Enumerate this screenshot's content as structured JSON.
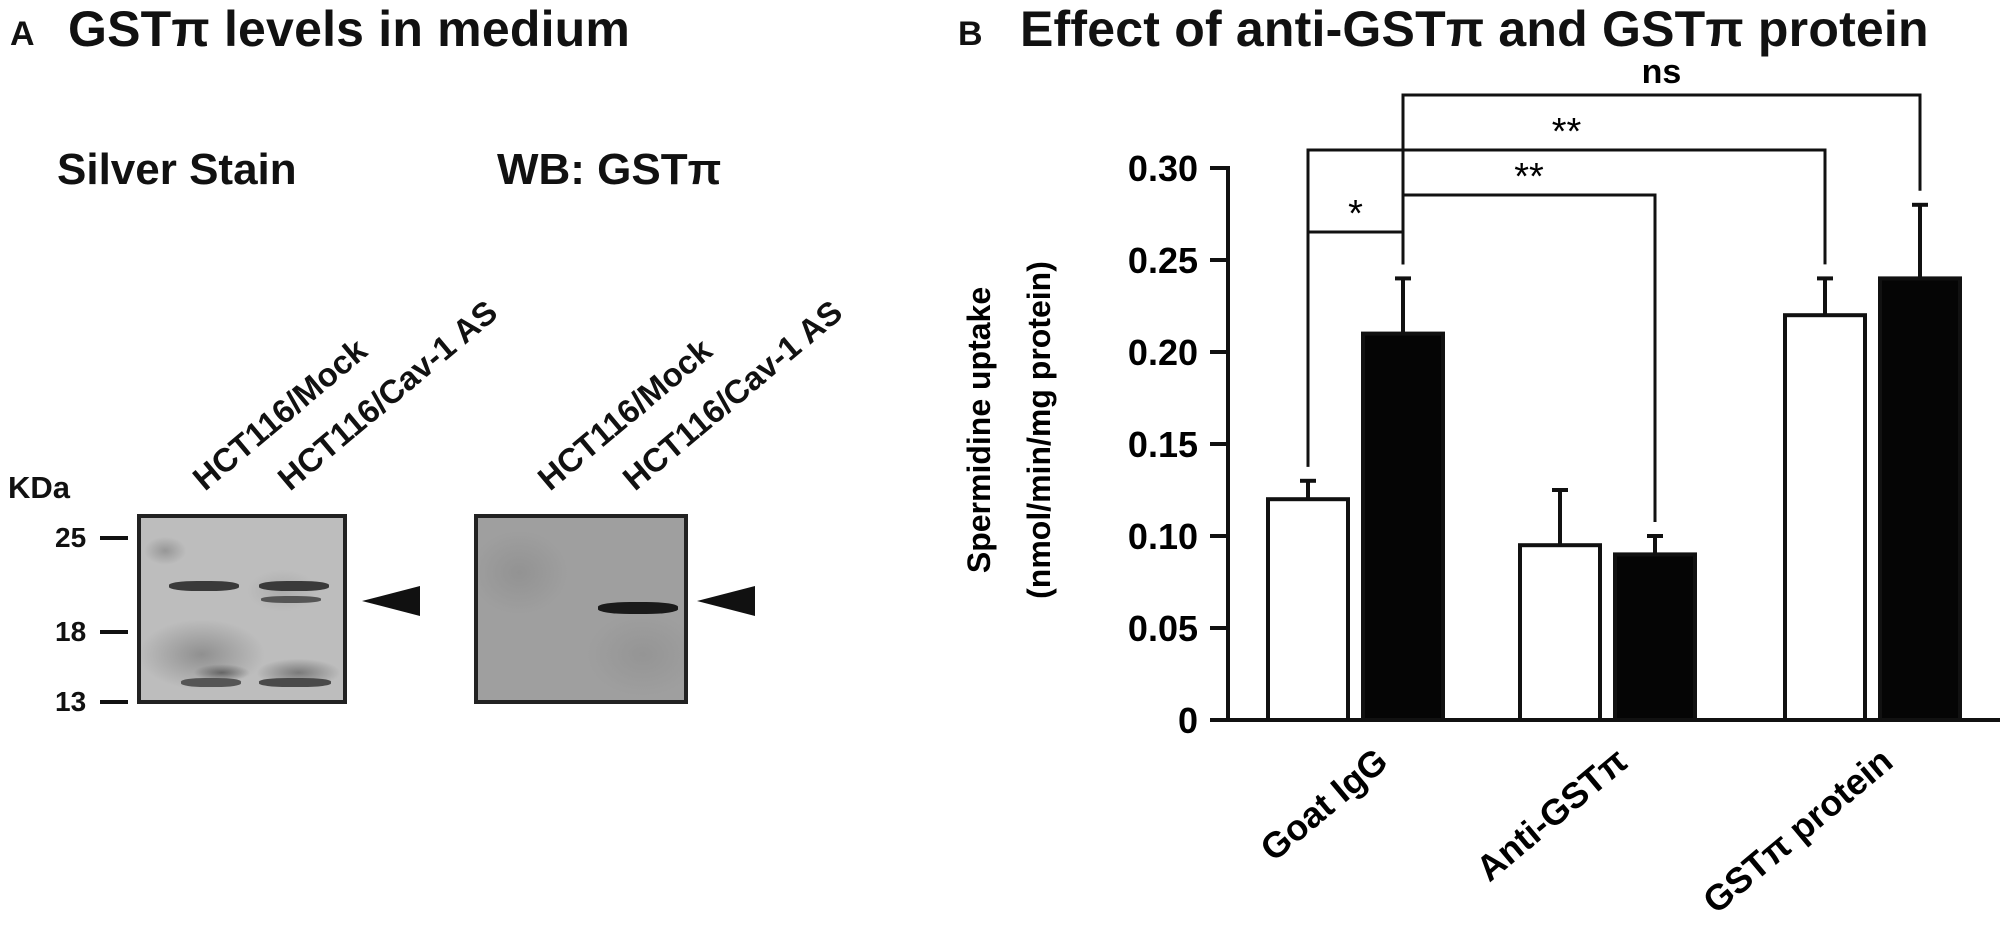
{
  "panel_a": {
    "letter": "A",
    "title": "GSTπ levels in medium",
    "silver": {
      "title": "Silver Stain",
      "lanes": [
        "HCT116/Mock",
        "HCT116/Cav-1 AS"
      ]
    },
    "wb": {
      "title": "WB: GSTπ",
      "lanes": [
        "HCT116/Mock",
        "HCT116/Cav-1 AS"
      ]
    },
    "kda_label": "KDa",
    "markers": [
      "25",
      "18",
      "13"
    ]
  },
  "panel_b": {
    "letter": "B",
    "title": "Effect of anti-GSTπ and GSTπ protein"
  },
  "chart_data": {
    "type": "bar",
    "title": "Effect of anti-GSTπ and GSTπ protein",
    "xlabel": "",
    "ylabel": [
      "Spermidine uptake",
      "(nmol/min/mg protein)"
    ],
    "categories": [
      "Goat IgG",
      "Anti-GSTπ",
      "GSTπ protein"
    ],
    "ylim": [
      0,
      0.3
    ],
    "yticks": [
      "0",
      "0.05",
      "0.10",
      "0.15",
      "0.20",
      "0.25",
      "0.30"
    ],
    "ytick_values": [
      0,
      0.05,
      0.1,
      0.15,
      0.2,
      0.25,
      0.3
    ],
    "series": [
      {
        "fill": "#ffffff",
        "values": [
          0.12,
          0.095,
          0.22
        ],
        "errors": [
          0.01,
          0.03,
          0.02
        ]
      },
      {
        "fill": "#050505",
        "values": [
          0.21,
          0.09,
          0.24
        ],
        "errors": [
          0.03,
          0.01,
          0.04
        ]
      }
    ],
    "significance": [
      {
        "label": "*",
        "from": [
          0,
          0
        ],
        "to": [
          0,
          1
        ]
      },
      {
        "label": "**",
        "from": [
          0,
          1
        ],
        "to": [
          1,
          1
        ]
      },
      {
        "label": "**",
        "from": [
          0,
          0
        ],
        "to": [
          2,
          0
        ]
      },
      {
        "label": "ns",
        "from": [
          0,
          1
        ],
        "to": [
          2,
          1
        ]
      }
    ]
  }
}
